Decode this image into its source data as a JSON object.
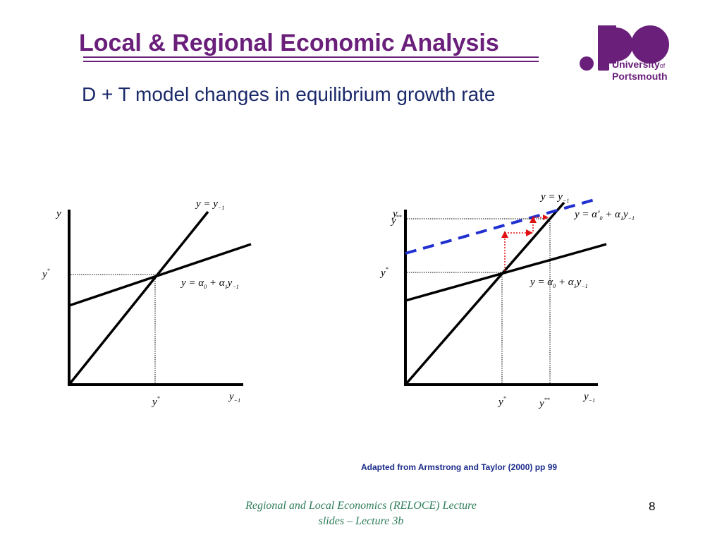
{
  "header": {
    "title": "Local & Regional Economic Analysis",
    "subtitle": "D + T model changes in equilibrium growth rate"
  },
  "logo": {
    "line1": "University",
    "of": "of",
    "line2": "Portsmouth",
    "color": "#6a1f7a"
  },
  "left_diagram": {
    "y_axis_label": "y",
    "x_axis_label": "y",
    "x_axis_sub": "−1",
    "ystar_label": "y",
    "ystar_sup": "*",
    "xstar_label": "y",
    "xstar_sup": "*",
    "line45_label_lhs": "y = y",
    "line45_label_sub": "−1",
    "growth_line_label": "y = α",
    "growth_line_sub0": "0",
    "growth_line_mid": " + α",
    "growth_line_sub1": "1",
    "growth_line_end": "y",
    "growth_line_sub2": "−1"
  },
  "right_diagram": {
    "y_axis_label": "y",
    "ystar2_label": "y",
    "ystar2_sup": "**",
    "x_axis_label": "y",
    "x_axis_sub": "−1",
    "ystar_label": "y",
    "ystar_sup": "*",
    "xstar_label": "y",
    "xstar_sup": "*",
    "xstar2_label": "y",
    "xstar2_sup": "**",
    "line45_label_lhs": "y = y",
    "line45_label_sub": "−1",
    "new_line_label": "y = α′",
    "new_line_sub0": "0",
    "new_line_mid": " + α",
    "new_line_sub1": "1",
    "new_line_end": "y",
    "new_line_sub2": "−1",
    "growth_line_label": "y = α",
    "growth_line_sub0": "0",
    "growth_line_mid": " + α",
    "growth_line_sub1": "1",
    "growth_line_end": "y",
    "growth_line_sub2": "−1",
    "new_line_color": "#1f2fd0",
    "arrow_color": "#e01010"
  },
  "source_note": "Adapted from Armstrong and Taylor (2000) pp 99",
  "footer": {
    "line1": "Regional and Local Economics (RELOCE) Lecture",
    "line2": "slides – Lecture 3b"
  },
  "page_number": "8"
}
